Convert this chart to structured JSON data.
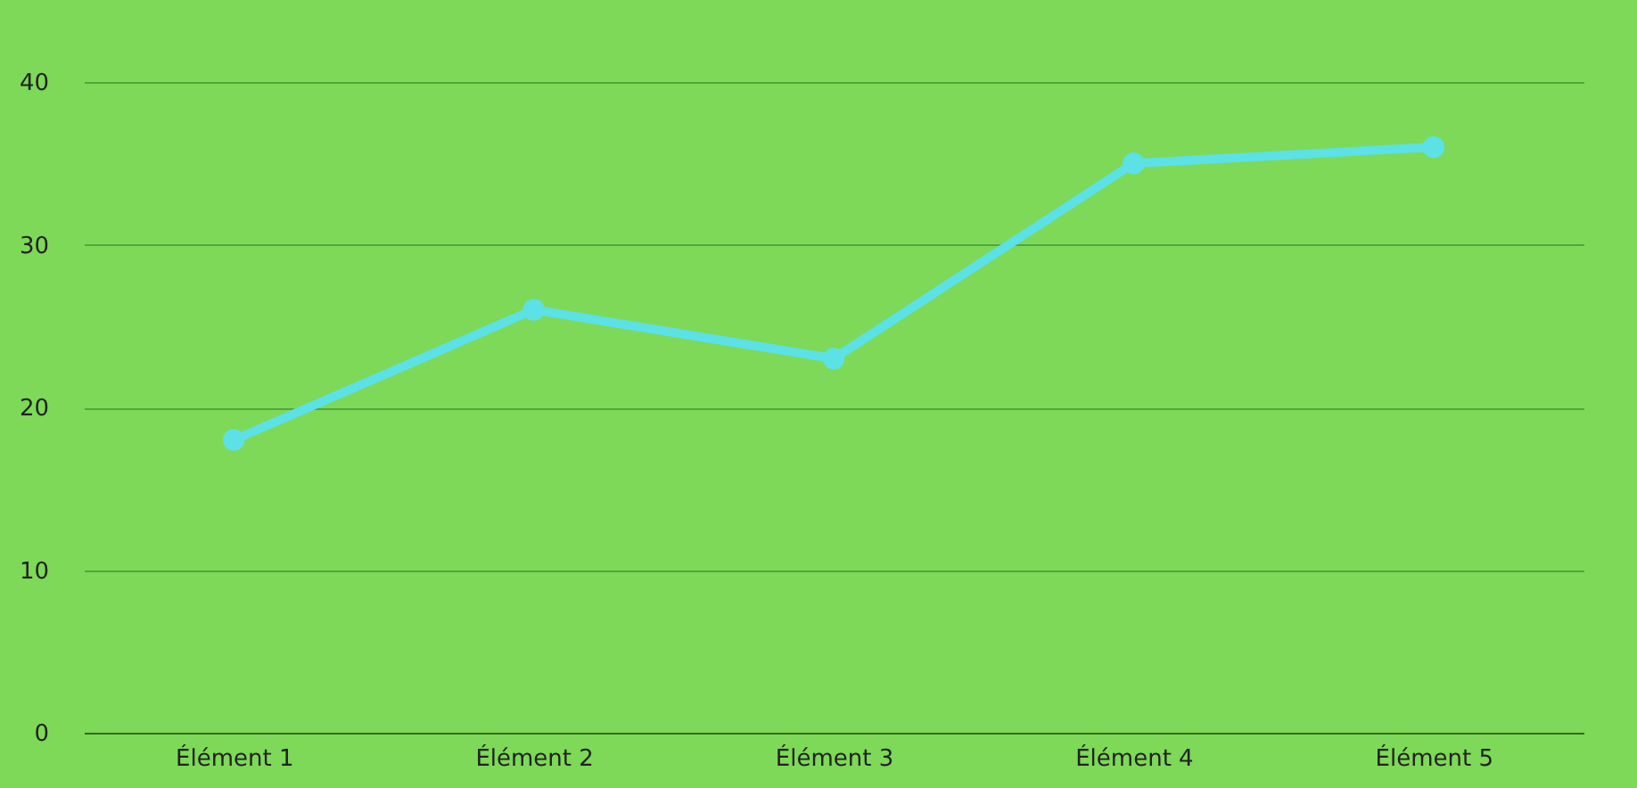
{
  "chart_data": {
    "type": "line",
    "categories": [
      "Élément 1",
      "Élément 2",
      "Élément 3",
      "Élément 4",
      "Élément 5"
    ],
    "series": [
      {
        "color": "#5ce1e6",
        "values": [
          18,
          26,
          23,
          35,
          36
        ]
      }
    ],
    "ylim": [
      0,
      40
    ],
    "yticks": [
      0,
      10,
      20,
      30,
      40
    ],
    "grid": "y",
    "marker": "circle"
  }
}
